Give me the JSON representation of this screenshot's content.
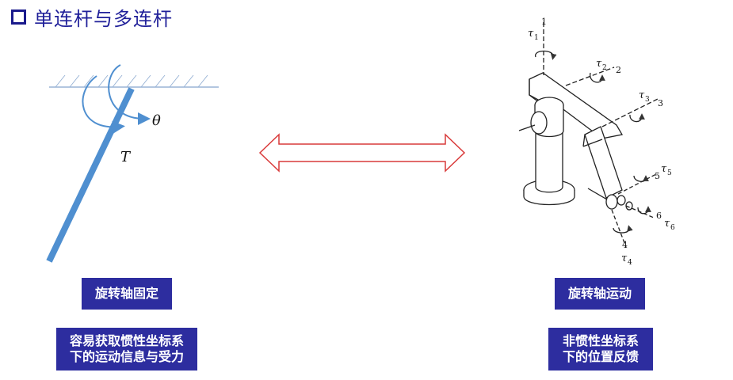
{
  "title": "单连杆与多连杆",
  "left": {
    "theta_symbol": "θ",
    "torque_symbol": "T",
    "label_fixed_axis": "旋转轴固定",
    "desc_line1": "容易获取惯性坐标系",
    "desc_line2": "下的运动信息与受力"
  },
  "right": {
    "joint_labels": {
      "tau1": "τ",
      "sub1": "1",
      "axis1": "1",
      "tau2": "τ",
      "sub2": "2",
      "axis2": "2",
      "tau3": "τ",
      "sub3": "3",
      "axis3": "3",
      "tau4": "τ",
      "sub4": "4",
      "axis4": "4",
      "tau5": "τ",
      "sub5": "5",
      "axis5": "5",
      "tau6": "τ",
      "sub6": "6",
      "axis6": "6"
    },
    "label_moving_axis": "旋转轴运动",
    "desc_line1": "非惯性坐标系",
    "desc_line2": "下的位置反馈"
  },
  "colors": {
    "title": "#1f1f99",
    "label_bg": "#2d2d9f",
    "link": "#4f8fd0",
    "arrow": "#d93a3a",
    "ceiling": "#9ab4d6"
  }
}
